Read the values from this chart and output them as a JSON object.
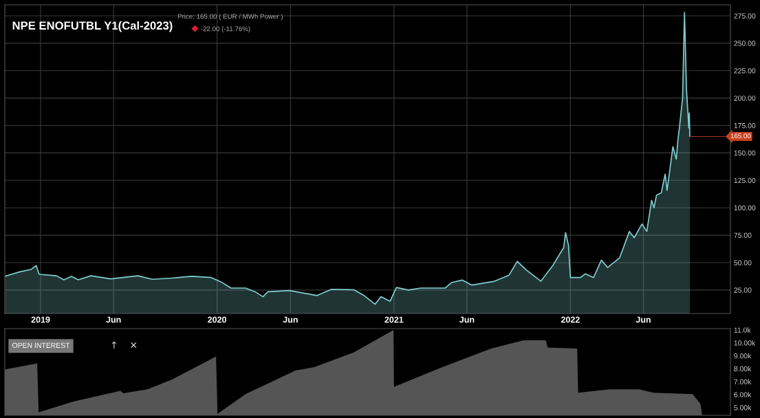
{
  "chart_data": [
    {
      "type": "area",
      "title": "NPE ENOFUTBL Y1(Cal-2023)",
      "subtitle": "Price: 165.00 ( EUR / MWh Power )",
      "annotations": [
        "-22.00 (-11.76%)",
        {
          "text": "165.00",
          "x": "2022-09-05",
          "y": 165
        }
      ],
      "x": [
        "2018-10-19",
        "2018-11-19",
        "2018-12-13",
        "2018-12-23",
        "2018-12-29",
        "2019-02-03",
        "2019-02-18",
        "2019-03-06",
        "2019-03-20",
        "2019-04-15",
        "2019-05-26",
        "2019-07-21",
        "2019-08-20",
        "2019-09-30",
        "2019-11-10",
        "2019-12-20",
        "2020-01-09",
        "2020-01-30",
        "2020-02-29",
        "2020-03-20",
        "2020-04-05",
        "2020-04-15",
        "2020-05-30",
        "2020-07-26",
        "2020-08-25",
        "2020-10-10",
        "2020-10-31",
        "2020-11-23",
        "2020-12-05",
        "2020-12-24",
        "2021-01-06",
        "2021-01-31",
        "2021-02-25",
        "2021-04-17",
        "2021-04-30",
        "2021-05-22",
        "2021-06-11",
        "2021-07-28",
        "2021-08-27",
        "2021-09-13",
        "2021-10-02",
        "2021-11-01",
        "2021-11-26",
        "2021-12-18",
        "2021-12-22",
        "2021-12-28",
        "2022-01-01",
        "2022-01-22",
        "2022-02-01",
        "2022-02-18",
        "2022-03-06",
        "2022-03-19",
        "2022-04-13",
        "2022-05-03",
        "2022-05-13",
        "2022-05-29",
        "2022-06-08",
        "2022-06-18",
        "2022-06-23",
        "2022-06-28",
        "2022-07-08",
        "2022-07-16",
        "2022-07-20",
        "2022-08-01",
        "2022-08-08",
        "2022-08-11",
        "2022-08-15",
        "2022-08-21",
        "2022-08-25",
        "2022-08-29",
        "2022-09-03",
        "2022-09-04",
        "2022-09-05"
      ],
      "series": [
        {
          "color": "#7fd0cf",
          "values": [
            37.5,
            41.6,
            43.9,
            47.3,
            39.3,
            38,
            34.3,
            37.5,
            34.3,
            38,
            35.2,
            38,
            34.8,
            35.9,
            37.5,
            36.4,
            32.5,
            26.8,
            26.8,
            23.4,
            18.9,
            23.4,
            24.5,
            20,
            25.7,
            25.2,
            20,
            12,
            18.9,
            14.8,
            27.3,
            25,
            26.8,
            26.8,
            31.8,
            34.1,
            29.5,
            33,
            38.6,
            51.1,
            43.2,
            33,
            47.7,
            63.6,
            77.3,
            65.9,
            36.4,
            36.4,
            39.8,
            36.4,
            52.3,
            45.5,
            54.5,
            78.4,
            72.7,
            85.2,
            78.4,
            106.8,
            100,
            111.4,
            113.6,
            130.7,
            115.9,
            155.7,
            144.3,
            160.2,
            175,
            200,
            278,
            209,
            172.7,
            186.4,
            165
          ]
        }
      ],
      "xlim": [
        "2018-10-19",
        "2022-11-28"
      ],
      "xticks": [
        {
          "value": "2019-01-01",
          "label": "2019"
        },
        {
          "value": "2019-06-01",
          "label": "Jun"
        },
        {
          "value": "2020-01-01",
          "label": "2020"
        },
        {
          "value": "2020-06-01",
          "label": "Jun"
        },
        {
          "value": "2021-01-01",
          "label": "2021"
        },
        {
          "value": "2021-06-01",
          "label": "Jun"
        },
        {
          "value": "2022-01-01",
          "label": "2022"
        },
        {
          "value": "2022-06-01",
          "label": "Jun"
        }
      ],
      "ylim": [
        3.6,
        285
      ],
      "yticks": [
        {
          "value": 25,
          "label": "25.00"
        },
        {
          "value": 50,
          "label": "50.00"
        },
        {
          "value": 75,
          "label": "75.00"
        },
        {
          "value": 100,
          "label": "100.00"
        },
        {
          "value": 125,
          "label": "125.00"
        },
        {
          "value": 150,
          "label": "150.00"
        },
        {
          "value": 175,
          "label": "175.00"
        },
        {
          "value": 200,
          "label": "200.00"
        },
        {
          "value": 225,
          "label": "225.00"
        },
        {
          "value": 250,
          "label": "250.00"
        },
        {
          "value": 275,
          "label": "275.00"
        }
      ],
      "grid": true
    },
    {
      "type": "area",
      "annotations": [
        "OPEN INTEREST",
        "↑",
        "✕"
      ],
      "x": [
        "2018-10-19",
        "2018-12-25",
        "2018-12-28",
        "2019-03-10",
        "2019-06-15",
        "2019-06-21",
        "2019-08-10",
        "2019-09-30",
        "2019-12-30",
        "2020-01-02",
        "2020-02-29",
        "2020-06-11",
        "2020-07-20",
        "2020-10-10",
        "2020-12-31",
        "2021-01-01",
        "2021-04-11",
        "2021-07-21",
        "2021-09-26",
        "2021-11-11",
        "2021-11-15",
        "2022-01-15",
        "2022-01-17",
        "2022-03-23",
        "2022-05-23",
        "2022-06-22",
        "2022-09-11",
        "2022-09-27",
        "2022-09-30"
      ],
      "series": [
        {
          "color": "#555555",
          "values": [
            7.93,
            8.42,
            4.62,
            5.46,
            6.29,
            6.1,
            6.41,
            7.17,
            8.95,
            4.5,
            6.03,
            7.85,
            8.12,
            9.26,
            11.0,
            6.6,
            8.12,
            9.56,
            10.2,
            10.2,
            9.64,
            9.56,
            6.14,
            6.41,
            6.41,
            6.14,
            6.03,
            5.27,
            4.5
          ]
        }
      ],
      "xlim": [
        "2018-10-19",
        "2022-11-28"
      ],
      "ylim": [
        4.4,
        11.1
      ],
      "yticks": [
        {
          "value": 5,
          "label": "5.00k"
        },
        {
          "value": 6,
          "label": "6.00k"
        },
        {
          "value": 7,
          "label": "7.00k"
        },
        {
          "value": 8,
          "label": "8.00k"
        },
        {
          "value": 9,
          "label": "9.00k"
        },
        {
          "value": 10,
          "label": "10.00k"
        },
        {
          "value": 11,
          "label": "11.0k"
        }
      ],
      "tick_labels": "y",
      "grid": false
    }
  ]
}
